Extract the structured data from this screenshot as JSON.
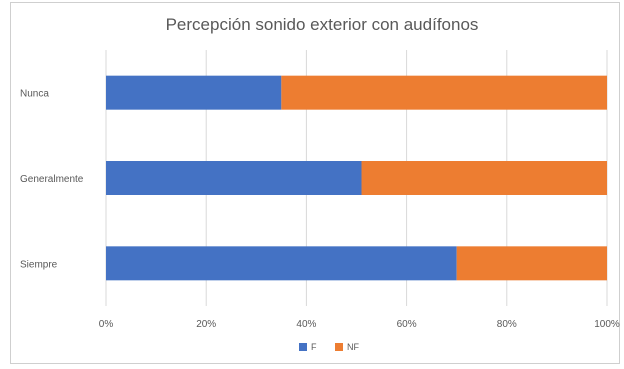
{
  "chart_data": {
    "type": "bar",
    "orientation": "horizontal",
    "stacked": "percent",
    "title": "Percepción sonido exterior con audífonos",
    "categories": [
      "Nunca",
      "Generalmente",
      "Siempre"
    ],
    "series": [
      {
        "name": "F",
        "values": [
          35,
          51,
          70
        ],
        "color": "#4472C4"
      },
      {
        "name": "NF",
        "values": [
          65,
          49,
          30
        ],
        "color": "#ED7D31"
      }
    ],
    "xticks": [
      "0%",
      "20%",
      "40%",
      "60%",
      "80%",
      "100%"
    ],
    "xlim": [
      0,
      100
    ],
    "grid": true,
    "legend": "bottom"
  }
}
